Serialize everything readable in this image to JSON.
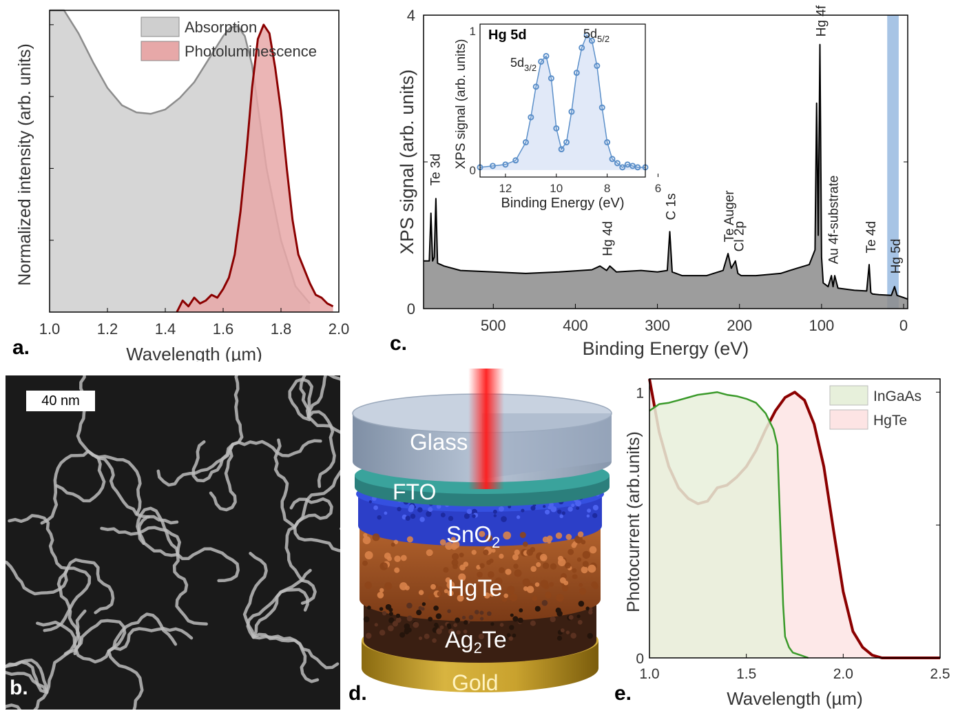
{
  "panel_labels": {
    "a": "a.",
    "b": "b.",
    "c": "c.",
    "d": "d.",
    "e": "e."
  },
  "chart_data": [
    {
      "id": "a",
      "type": "area",
      "xlabel": "Wavelength (µm)",
      "ylabel": "Normalized intensity (arb. units)",
      "xlim": [
        1.0,
        2.0
      ],
      "ylim": [
        0,
        1.05
      ],
      "xticks": [
        "1.0",
        "1.2",
        "1.4",
        "1.6",
        "1.8",
        "2.0"
      ],
      "legend_position": "top-right",
      "series": [
        {
          "name": "Absorption",
          "color": "#8c8c8c",
          "fill": "#cfcfcf",
          "x": [
            1.0,
            1.05,
            1.1,
            1.15,
            1.2,
            1.25,
            1.3,
            1.35,
            1.4,
            1.45,
            1.5,
            1.55,
            1.6,
            1.625,
            1.65,
            1.675,
            1.7,
            1.725,
            1.75,
            1.8,
            1.85,
            1.9
          ],
          "y": [
            1.16,
            1.07,
            0.97,
            0.87,
            0.78,
            0.72,
            0.695,
            0.69,
            0.705,
            0.745,
            0.8,
            0.88,
            0.96,
            0.99,
            0.995,
            0.96,
            0.86,
            0.68,
            0.5,
            0.25,
            0.09,
            0.03
          ]
        },
        {
          "name": "Photoluminescence",
          "color": "#8b0000",
          "fill": "#e7a8a8",
          "x": [
            1.44,
            1.46,
            1.48,
            1.5,
            1.52,
            1.54,
            1.56,
            1.58,
            1.6,
            1.62,
            1.64,
            1.66,
            1.68,
            1.7,
            1.72,
            1.74,
            1.76,
            1.78,
            1.8,
            1.82,
            1.84,
            1.86,
            1.88,
            1.9,
            1.92,
            1.94,
            1.96,
            1.98
          ],
          "y": [
            0.0,
            0.04,
            0.02,
            0.05,
            0.03,
            0.04,
            0.06,
            0.05,
            0.08,
            0.12,
            0.2,
            0.35,
            0.55,
            0.78,
            0.95,
            1.0,
            0.97,
            0.85,
            0.7,
            0.5,
            0.32,
            0.2,
            0.15,
            0.1,
            0.06,
            0.05,
            0.03,
            0.02
          ]
        }
      ]
    },
    {
      "id": "c",
      "type": "area",
      "xlabel": "Binding Energy (eV)",
      "ylabel": "XPS signal (arb. units)",
      "xlim": [
        585,
        -5
      ],
      "ylim": [
        0,
        4
      ],
      "xticks": [
        "500",
        "400",
        "300",
        "200",
        "100",
        "0"
      ],
      "yticks": [
        "0",
        "4"
      ],
      "highlight_band": [
        6,
        20
      ],
      "annotations": [
        "Te 3d",
        "Hg 4d",
        "C 1s",
        "Te Auger",
        "Cl 2p",
        "Hg 4f",
        "Au 4f-substrate",
        "Te 4d",
        "Hg 5d"
      ],
      "series": [
        {
          "color": "#000000",
          "fill": "#8c8c8c",
          "x": [
            585,
            578,
            576,
            574,
            572,
            570,
            568,
            560,
            540,
            500,
            460,
            420,
            380,
            370,
            362,
            358,
            350,
            320,
            300,
            288,
            285,
            282,
            270,
            240,
            220,
            214,
            210,
            205,
            202,
            198,
            180,
            150,
            130,
            115,
            108,
            106,
            104,
            102,
            100,
            98,
            92,
            88,
            86,
            84,
            80,
            60,
            45,
            42,
            40,
            38,
            30,
            15,
            11,
            8,
            0,
            -5
          ],
          "y": [
            0.65,
            0.65,
            1.3,
            0.65,
            0.7,
            1.5,
            0.62,
            0.58,
            0.52,
            0.5,
            0.48,
            0.5,
            0.53,
            0.58,
            0.52,
            0.58,
            0.5,
            0.52,
            0.5,
            0.52,
            1.05,
            0.5,
            0.45,
            0.45,
            0.52,
            0.75,
            0.55,
            0.65,
            0.48,
            0.45,
            0.45,
            0.48,
            0.55,
            0.6,
            0.8,
            2.8,
            1.0,
            3.6,
            0.7,
            0.35,
            0.3,
            0.45,
            0.3,
            0.45,
            0.28,
            0.25,
            0.24,
            0.6,
            0.22,
            0.2,
            0.19,
            0.18,
            0.3,
            0.18,
            0.15,
            0.13
          ]
        }
      ],
      "inset": {
        "title": "Hg 5d",
        "xlabel": "Binding Energy (eV)",
        "ylabel": "XPS signal (arb. units)",
        "xlim": [
          13,
          6.5
        ],
        "ylim": [
          -0.05,
          1.05
        ],
        "xticks": [
          "12",
          "10",
          "8",
          "6"
        ],
        "yticks": [
          "0",
          "1"
        ],
        "peak_labels": [
          {
            "base": "5d",
            "sub": "3/2"
          },
          {
            "base": "5d",
            "sub": "5/2"
          }
        ],
        "color": "#5b8fc9",
        "fill": "#e1e9f8",
        "x": [
          13.0,
          12.5,
          12.0,
          11.6,
          11.2,
          11.0,
          10.8,
          10.6,
          10.4,
          10.2,
          10.0,
          9.8,
          9.6,
          9.4,
          9.2,
          9.0,
          8.8,
          8.6,
          8.4,
          8.2,
          8.0,
          7.8,
          7.6,
          7.4,
          7.2,
          7.0,
          6.8,
          6.5
        ],
        "y": [
          0.02,
          0.03,
          0.04,
          0.07,
          0.2,
          0.38,
          0.6,
          0.78,
          0.82,
          0.66,
          0.3,
          0.15,
          0.2,
          0.42,
          0.7,
          0.88,
          0.97,
          0.93,
          0.75,
          0.45,
          0.2,
          0.08,
          0.05,
          0.02,
          0.04,
          0.03,
          0.02,
          0.02
        ]
      }
    },
    {
      "id": "e",
      "type": "area",
      "xlabel": "Wavelength (µm)",
      "ylabel": "Photocurrent (arb.units)",
      "xlim": [
        1.0,
        2.5
      ],
      "ylim": [
        0,
        1.05
      ],
      "xticks": [
        "1.0",
        "1.5",
        "2.0",
        "2.5"
      ],
      "yticks": [
        "0",
        "1"
      ],
      "legend_position": "top-right",
      "series": [
        {
          "name": "InGaAs",
          "color": "#3a9a2a",
          "fill": "#e7f0db",
          "x": [
            1.0,
            1.05,
            1.1,
            1.15,
            1.2,
            1.25,
            1.3,
            1.35,
            1.4,
            1.45,
            1.5,
            1.55,
            1.6,
            1.62,
            1.64,
            1.66,
            1.67,
            1.68,
            1.69,
            1.7,
            1.72,
            1.74,
            1.78,
            1.82
          ],
          "y": [
            0.93,
            0.955,
            0.96,
            0.97,
            0.98,
            0.99,
            0.995,
            1.0,
            0.99,
            0.985,
            0.975,
            0.96,
            0.92,
            0.89,
            0.86,
            0.8,
            0.6,
            0.4,
            0.2,
            0.08,
            0.04,
            0.02,
            0.01,
            0.0
          ]
        },
        {
          "name": "HgTe",
          "color": "#8b0000",
          "fill": "#fde4e4",
          "x": [
            1.0,
            1.05,
            1.1,
            1.15,
            1.2,
            1.25,
            1.3,
            1.35,
            1.4,
            1.45,
            1.5,
            1.55,
            1.6,
            1.65,
            1.7,
            1.75,
            1.8,
            1.85,
            1.9,
            1.95,
            2.0,
            2.05,
            2.1,
            2.15,
            2.2,
            2.3,
            2.4,
            2.5
          ],
          "y": [
            1.05,
            0.85,
            0.72,
            0.64,
            0.6,
            0.58,
            0.59,
            0.64,
            0.65,
            0.68,
            0.72,
            0.78,
            0.86,
            0.93,
            0.98,
            1.0,
            0.97,
            0.88,
            0.72,
            0.48,
            0.25,
            0.1,
            0.04,
            0.01,
            0.0,
            0.0,
            0.0,
            0.0
          ]
        }
      ]
    }
  ],
  "tem_image": {
    "scale_bar_label": "40 nm"
  },
  "device_schematic": {
    "layers": [
      {
        "label": "Glass"
      },
      {
        "label": "FTO"
      },
      {
        "label_base": "SnO",
        "label_sub": "2"
      },
      {
        "label": "HgTe"
      },
      {
        "label_base": "Ag",
        "label_sub": "2",
        "label_tail": "Te"
      },
      {
        "label": "Gold"
      }
    ]
  }
}
